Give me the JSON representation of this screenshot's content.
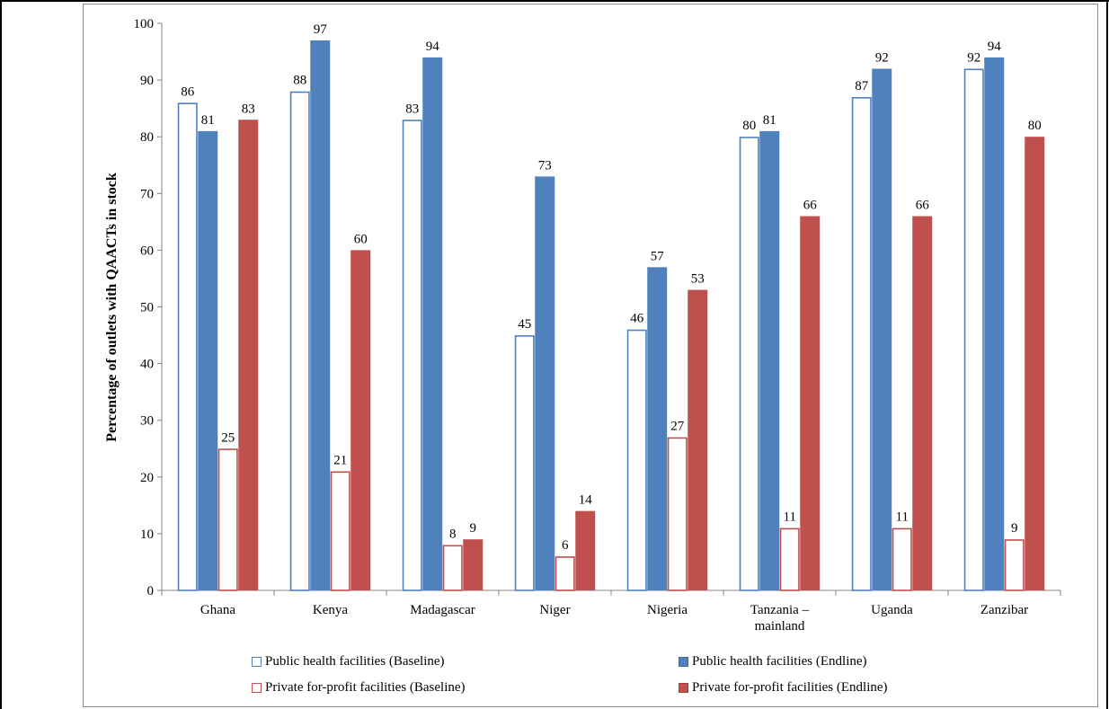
{
  "chart_data": {
    "type": "bar",
    "title": "",
    "xlabel": "",
    "ylabel": "Percentage of outlets with QAACTs in stock",
    "ylim": [
      0,
      100
    ],
    "yticks": [
      0,
      10,
      20,
      30,
      40,
      50,
      60,
      70,
      80,
      90,
      100
    ],
    "grid": false,
    "legend_position": "bottom",
    "categories": [
      "Ghana",
      "Kenya",
      "Madagascar",
      "Niger",
      "Nigeria",
      "Tanzania – mainland",
      "Uganda",
      "Zanzibar"
    ],
    "series": [
      {
        "name": "Public health facilities (Baseline)",
        "values": [
          86,
          88,
          83,
          45,
          46,
          80,
          87,
          92
        ],
        "color": "#4f81bd",
        "style": "outline"
      },
      {
        "name": "Public health facilities (Endline)",
        "values": [
          81,
          97,
          94,
          73,
          57,
          81,
          92,
          94
        ],
        "color": "#4f81bd",
        "style": "filled"
      },
      {
        "name": "Private for-profit facilities (Baseline)",
        "values": [
          25,
          21,
          8,
          6,
          27,
          11,
          11,
          9
        ],
        "color": "#c0504d",
        "style": "outline"
      },
      {
        "name": "Private for-profit facilities (Endline)",
        "values": [
          83,
          60,
          9,
          14,
          53,
          66,
          66,
          80
        ],
        "color": "#c0504d",
        "style": "filled"
      }
    ]
  }
}
